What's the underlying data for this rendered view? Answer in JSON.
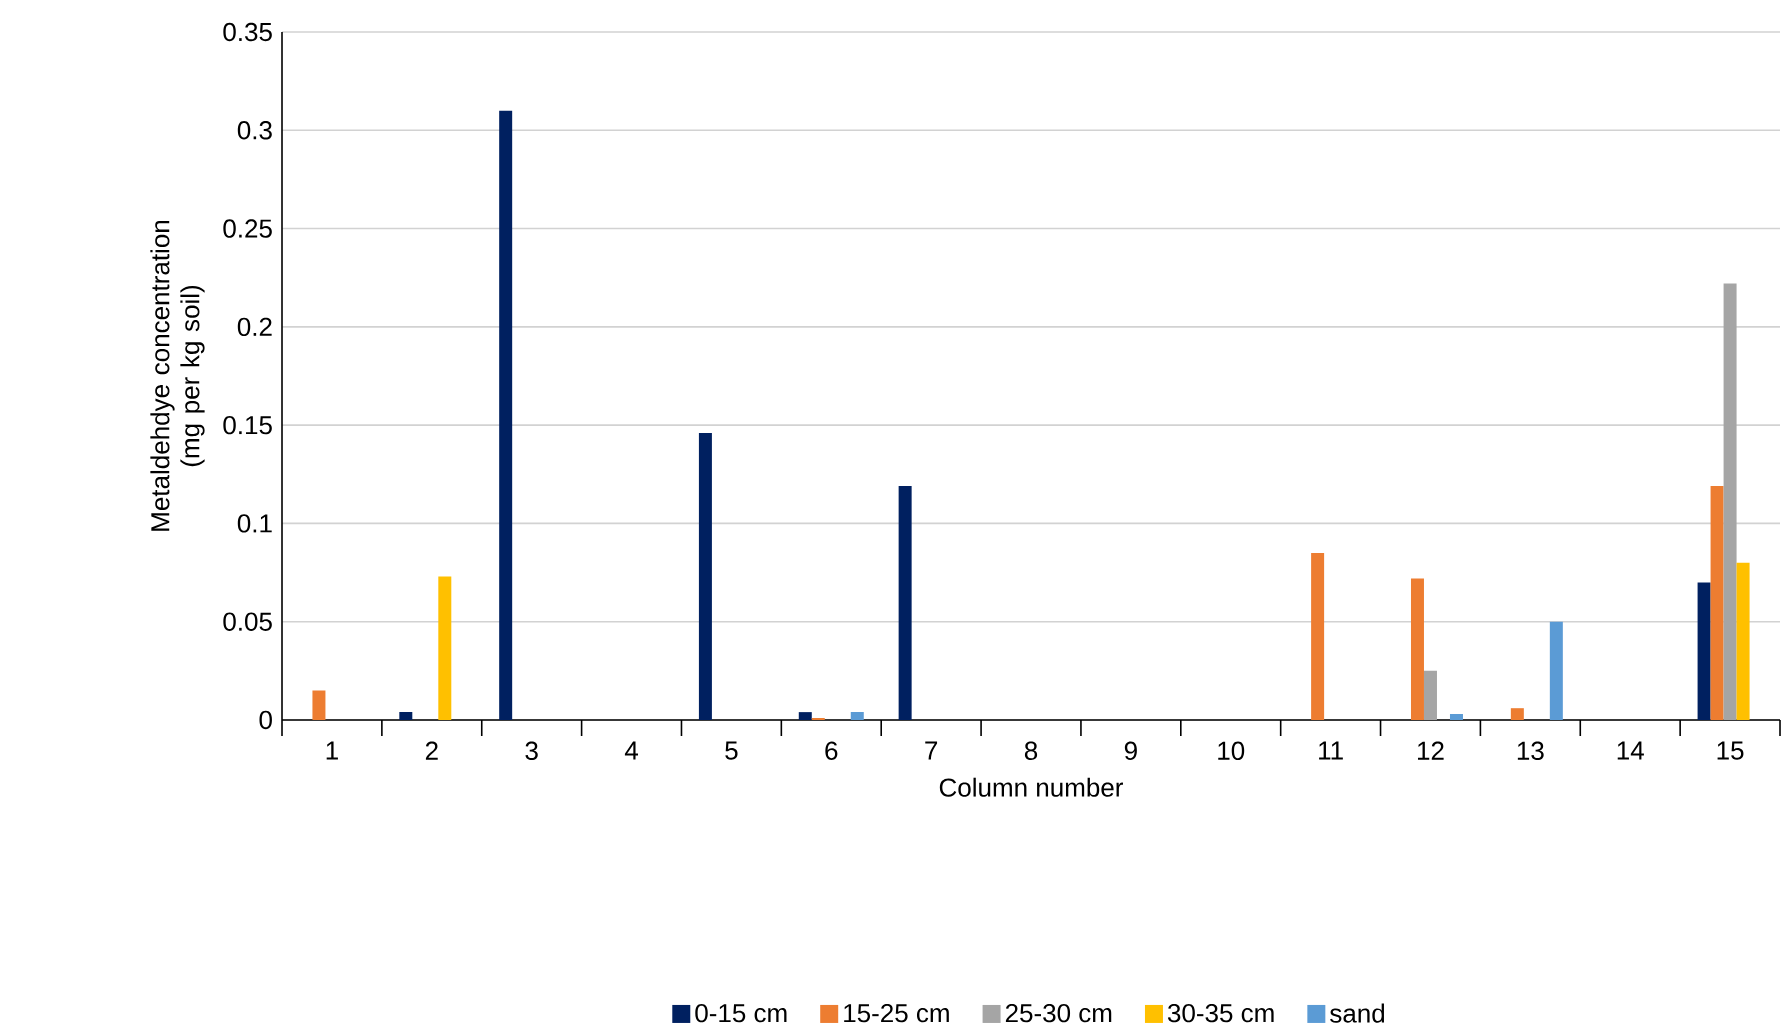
{
  "chart_data": {
    "type": "bar",
    "xlabel": "Column number",
    "ylabel": "Metaldehdye concentration (mg per kg soil)",
    "categories": [
      "1",
      "2",
      "3",
      "4",
      "5",
      "6",
      "7",
      "8",
      "9",
      "10",
      "11",
      "12",
      "13",
      "14",
      "15"
    ],
    "series": [
      {
        "name": "0-15 cm",
        "color": "#002060",
        "values": [
          null,
          0.004,
          0.31,
          null,
          0.146,
          0.004,
          0.119,
          null,
          null,
          null,
          null,
          null,
          null,
          null,
          0.07
        ]
      },
      {
        "name": "15-25 cm",
        "color": "#ed7d31",
        "values": [
          0.015,
          null,
          null,
          null,
          null,
          0.001,
          null,
          null,
          null,
          null,
          0.085,
          0.072,
          0.006,
          null,
          0.119
        ]
      },
      {
        "name": "25-30 cm",
        "color": "#a5a5a5",
        "values": [
          null,
          null,
          null,
          null,
          null,
          null,
          null,
          null,
          null,
          null,
          null,
          0.025,
          null,
          null,
          0.222
        ]
      },
      {
        "name": "30-35 cm",
        "color": "#ffc000",
        "values": [
          null,
          0.073,
          null,
          null,
          null,
          null,
          null,
          null,
          null,
          null,
          null,
          null,
          null,
          null,
          0.08
        ]
      },
      {
        "name": "sand",
        "color": "#5b9bd5",
        "values": [
          null,
          null,
          null,
          null,
          null,
          0.004,
          null,
          null,
          null,
          null,
          null,
          0.003,
          0.05,
          null,
          null
        ]
      }
    ],
    "ylim": [
      0,
      0.35
    ],
    "yticks": [
      0,
      0.05,
      0.1,
      0.15,
      0.2,
      0.25,
      0.3,
      0.35
    ],
    "grid": "y",
    "legend": "bottom"
  }
}
